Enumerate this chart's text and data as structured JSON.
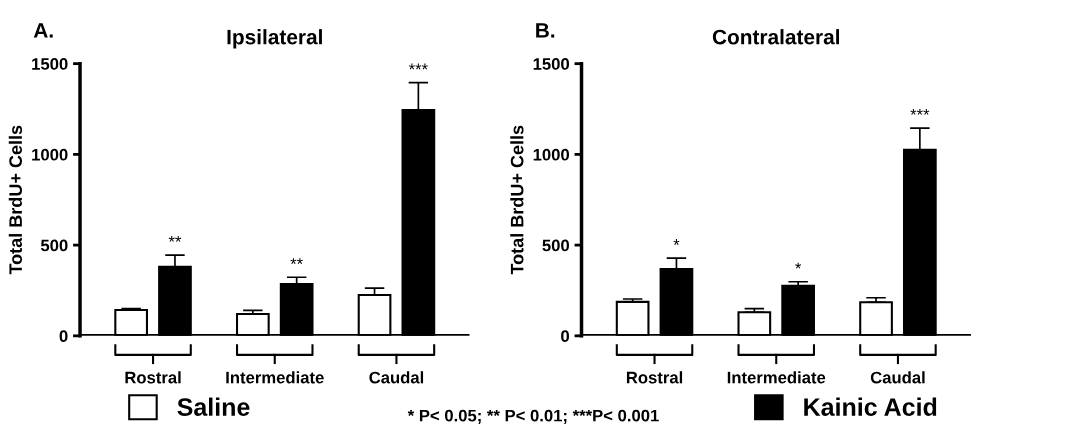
{
  "chart_data": [
    {
      "type": "bar",
      "title": "Ipsilateral",
      "ylabel": "Total BrdU+ Cells",
      "categories": [
        "Rostral",
        "Intermediate",
        "Caudal"
      ],
      "series": [
        {
          "name": "Saline",
          "color": "#ffffff",
          "values": [
            142,
            120,
            225
          ],
          "errors": [
            [
              142,
              150
            ],
            [
              120,
              140
            ],
            [
              225,
              263
            ]
          ]
        },
        {
          "name": "Kainic Acid",
          "color": "#000000",
          "values": [
            380,
            285,
            1245
          ],
          "errors": [
            [
              380,
              445
            ],
            [
              285,
              323
            ],
            [
              1245,
              1395
            ]
          ],
          "value_labels": [
            "**",
            "**",
            "***"
          ]
        }
      ],
      "ylim": [
        0,
        1500
      ],
      "yticks": [
        0,
        500,
        1000,
        1500
      ],
      "grid": false,
      "legend": "bottom",
      "annotations": [
        "A.",
        "* P< 0.05; ** P< 0.01; ***P< 0.001"
      ]
    },
    {
      "type": "bar",
      "title": "Contralateral",
      "ylabel": "Total BrdU+ Cells",
      "categories": [
        "Rostral",
        "Intermediate",
        "Caudal"
      ],
      "series": [
        {
          "color": "#ffffff",
          "values": [
            187,
            130,
            185
          ],
          "errors": [
            [
              187,
              203
            ],
            [
              130,
              150
            ],
            [
              185,
              210
            ]
          ]
        },
        {
          "color": "#000000",
          "values": [
            368,
            276,
            1025
          ],
          "errors": [
            [
              368,
              428
            ],
            [
              276,
              298
            ],
            [
              1025,
              1145
            ]
          ],
          "value_labels": [
            "*",
            "*",
            "***"
          ]
        }
      ],
      "ylim": [
        0,
        1500
      ],
      "yticks": [
        0,
        500,
        1000,
        1500
      ],
      "grid": false,
      "legend": false,
      "annotations": [
        "B."
      ]
    }
  ]
}
